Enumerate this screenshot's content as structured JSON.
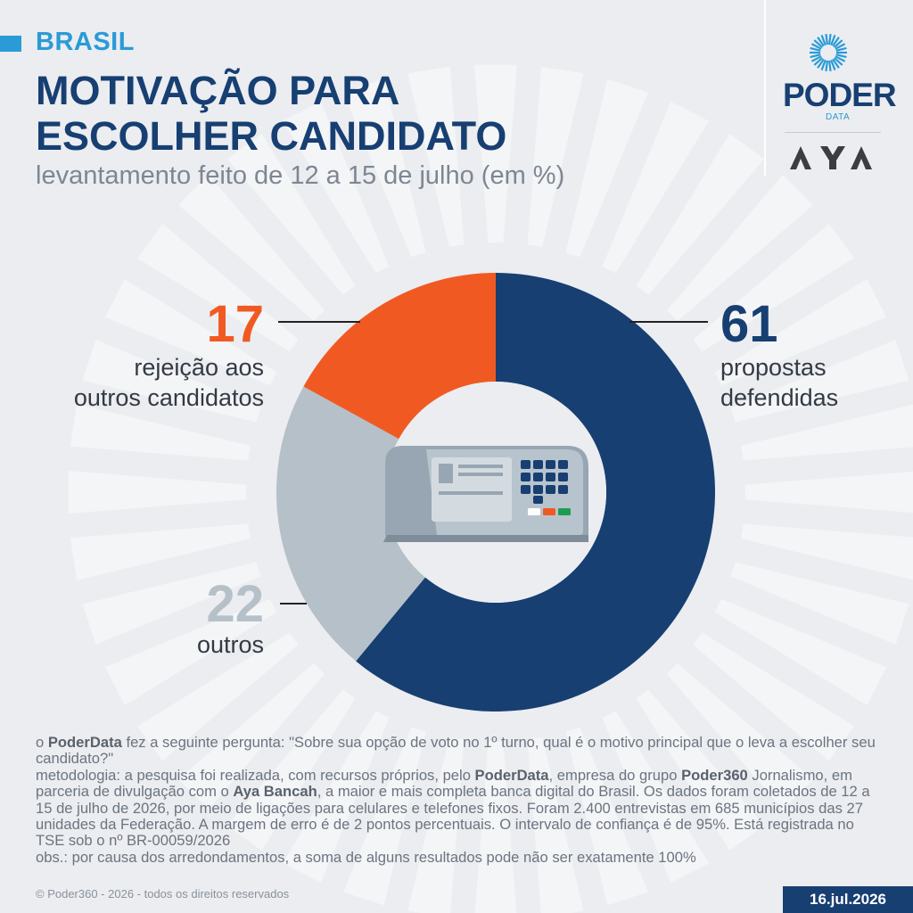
{
  "region": "BRASIL",
  "title_lines": [
    "MOTIVAÇÃO PARA",
    "ESCOLHER CANDIDATO"
  ],
  "subtitle": "levantamento feito de 12 a 15 de julho (em %)",
  "logos": {
    "poder_word": "PODER",
    "poder_sub": "DATA",
    "aya_word": "AYA"
  },
  "colors": {
    "navy": "#173f72",
    "orange": "#f05a22",
    "gray": "#b5c0c8",
    "accent": "#2a9bd6"
  },
  "chart_data": {
    "type": "pie",
    "variant": "donut",
    "unit": "%",
    "slices": [
      {
        "label_lines": [
          "propostas",
          "defendidas"
        ],
        "value": 61,
        "color": "#173f72"
      },
      {
        "label_lines": [
          "outros"
        ],
        "value": 22,
        "color": "#b5c0c8"
      },
      {
        "label_lines": [
          "rejeição aos",
          "outros candidatos"
        ],
        "value": 17,
        "color": "#f05a22"
      }
    ]
  },
  "notes": {
    "question_prefix": "o ",
    "question_brand": "PoderData",
    "question_text": " fez a seguinte pergunta: \"Sobre sua opção de voto no 1º turno, qual é o motivo principal que o leva a escolher seu candidato?\"",
    "method_a": "metodologia: a pesquisa foi realizada, com recursos próprios, pelo ",
    "method_brand1": "PoderData",
    "method_b": ", empresa do grupo ",
    "method_brand2": "Poder360",
    "method_c": " Jornalismo, em parceria de divulgação com o ",
    "method_brand3": "Aya Bancah",
    "method_d": ", a maior e mais completa banca digital do Brasil. Os dados foram coletados de 12 a 15 de julho de 2026, por meio de ligações para celulares e telefones fixos. Foram 2.400 entrevistas em 685 municípios das 27 unidades da Federação. A margem de erro é de 2 pontos percentuais. O intervalo de confiança é de 95%. Está registrada no TSE sob o nº BR-00059/2026",
    "obs": "obs.: por causa dos arredondamentos, a soma de alguns resultados pode não ser exatamente 100%"
  },
  "copyright": "© Poder360 - 2026 - todos os direitos reservados",
  "date": "16.jul.2026"
}
